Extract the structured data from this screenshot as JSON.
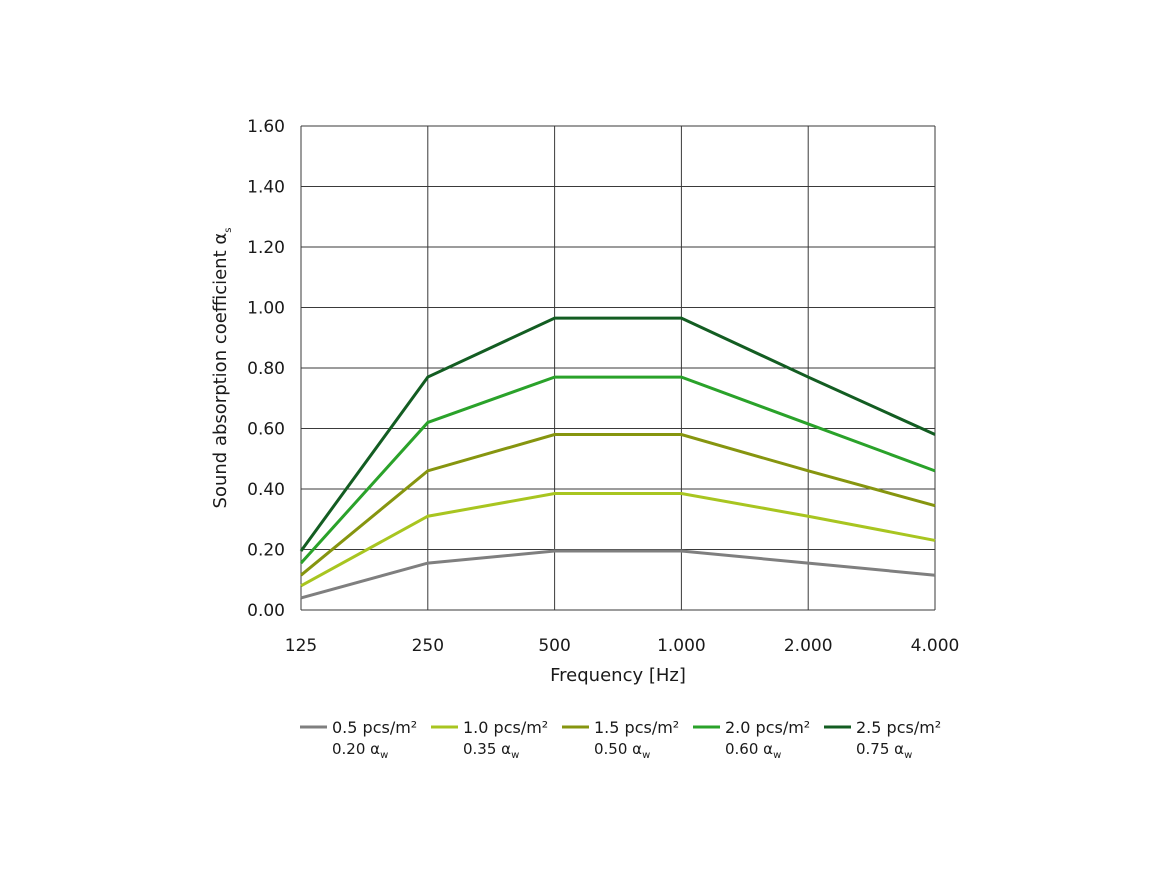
{
  "chart_data": {
    "type": "line",
    "title": "",
    "xlabel": "Frequency [Hz]",
    "ylabel": "Sound absorption coefficient α",
    "ylabel_subscript": "s",
    "categories": [
      "125",
      "250",
      "500",
      "1.000",
      "2.000",
      "4.000"
    ],
    "ylim": [
      0,
      1.6
    ],
    "yticks": [
      "0.00",
      "0.20",
      "0.40",
      "0.60",
      "0.80",
      "1.00",
      "1.20",
      "1.40",
      "1.60"
    ],
    "ytick_values": [
      0,
      0.2,
      0.4,
      0.6,
      0.8,
      1.0,
      1.2,
      1.4,
      1.6
    ],
    "grid": true,
    "legend_position": "bottom",
    "series": [
      {
        "name": "0.5 pcs/m²",
        "rating": "0.20 α",
        "rating_subscript": "w",
        "color": "#7f7f7f",
        "values": [
          0.04,
          0.155,
          0.195,
          0.195,
          0.155,
          0.115
        ]
      },
      {
        "name": "1.0 pcs/m²",
        "rating": "0.35 α",
        "rating_subscript": "w",
        "color": "#a8c520",
        "values": [
          0.08,
          0.31,
          0.385,
          0.385,
          0.31,
          0.23
        ]
      },
      {
        "name": "1.5 pcs/m²",
        "rating": "0.50 α",
        "rating_subscript": "w",
        "color": "#86950f",
        "values": [
          0.115,
          0.46,
          0.58,
          0.58,
          0.46,
          0.345
        ]
      },
      {
        "name": "2.0 pcs/m²",
        "rating": "0.60 α",
        "rating_subscript": "w",
        "color": "#2aa22a",
        "values": [
          0.155,
          0.62,
          0.77,
          0.77,
          0.615,
          0.46
        ]
      },
      {
        "name": "2.5 pcs/m²",
        "rating": "0.75 α",
        "rating_subscript": "w",
        "color": "#135d22",
        "values": [
          0.195,
          0.77,
          0.965,
          0.965,
          0.77,
          0.58
        ]
      }
    ]
  }
}
